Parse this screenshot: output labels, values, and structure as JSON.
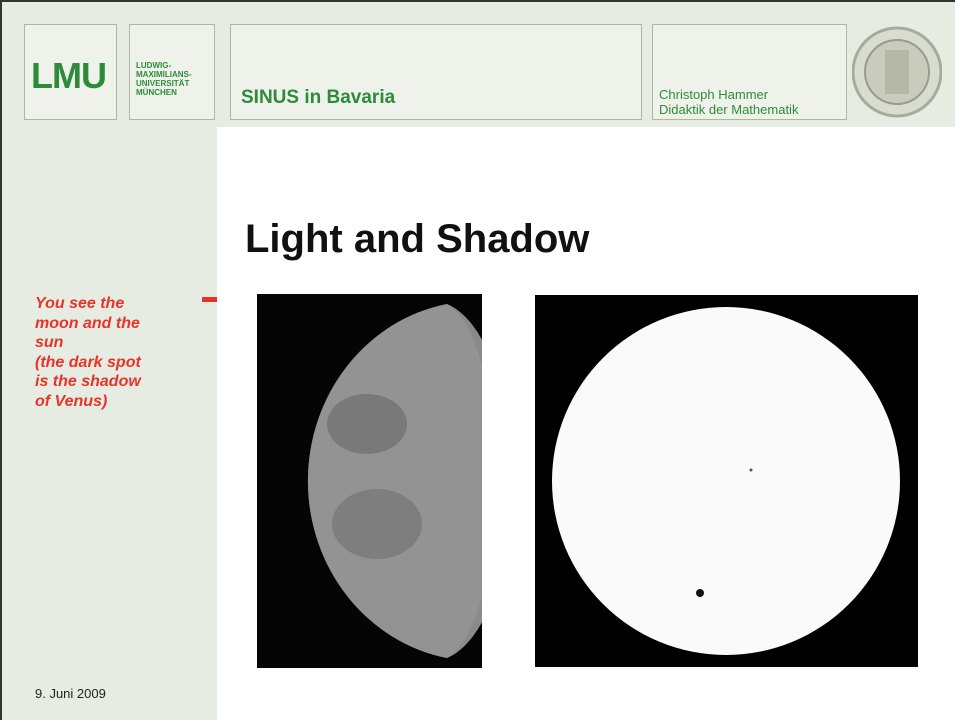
{
  "header": {
    "logo": "LMU",
    "university": [
      "LUDWIG-",
      "MAXIMILIANS-",
      "UNIVERSITÄT",
      "MÜNCHEN"
    ],
    "title": "SINUS in Bavaria",
    "author": "Christoph Hammer",
    "department": "Didaktik der Mathematik"
  },
  "slide": {
    "title": "Light and Shadow"
  },
  "sidebar": {
    "caption": [
      "You see the",
      "moon and the",
      "sun",
      "(the dark spot",
      "is the shadow",
      "of Venus)"
    ]
  },
  "footer": {
    "date": "9. Juni 2009"
  }
}
